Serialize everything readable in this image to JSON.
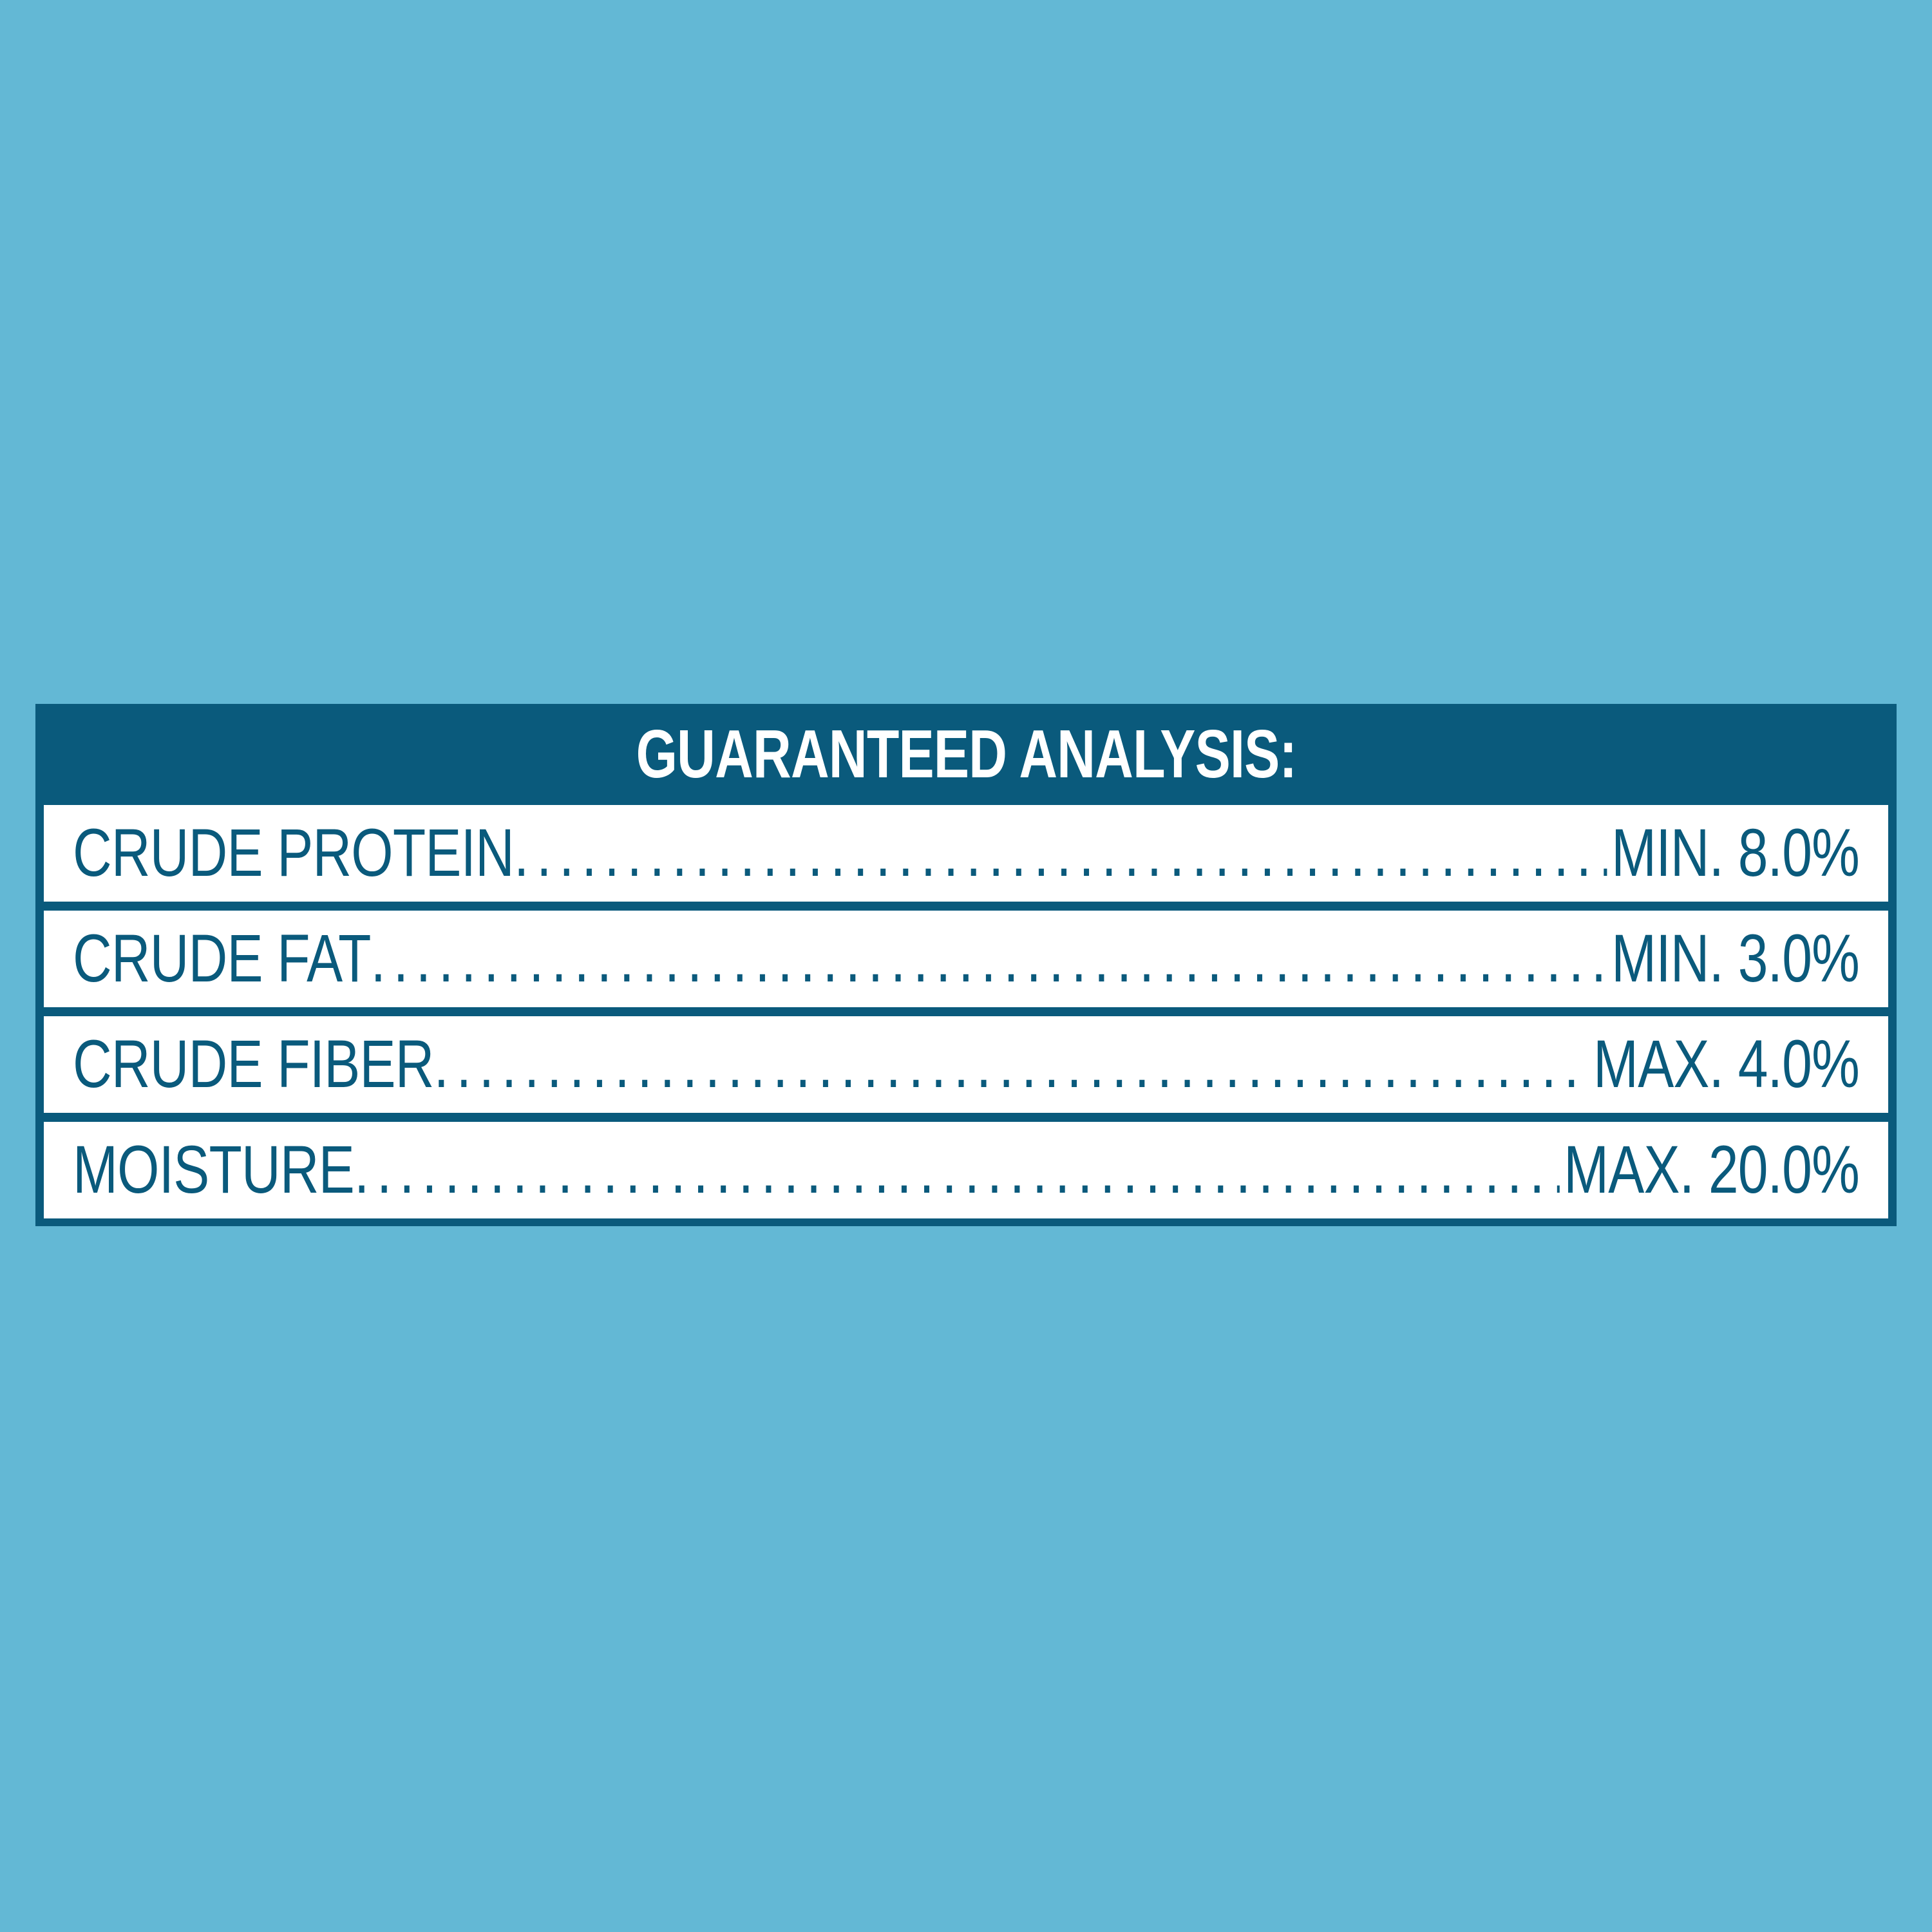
{
  "colors": {
    "background": "#63B8D5",
    "panel_teal": "#0A5A7C",
    "row_background": "#FFFFFF",
    "header_text": "#FFFFFF",
    "row_text": "#0A5A7C"
  },
  "panel": {
    "header": {
      "title": "GUARANTEED ANALYSIS:"
    },
    "rows": [
      {
        "label": "CRUDE PROTEIN",
        "value": "MIN. 8.0%"
      },
      {
        "label": "CRUDE FAT",
        "value": "MIN. 3.0%"
      },
      {
        "label": "CRUDE FIBER",
        "value": "MAX. 4.0%"
      },
      {
        "label": "MOISTURE",
        "value": "MAX. 20.0%"
      }
    ]
  }
}
